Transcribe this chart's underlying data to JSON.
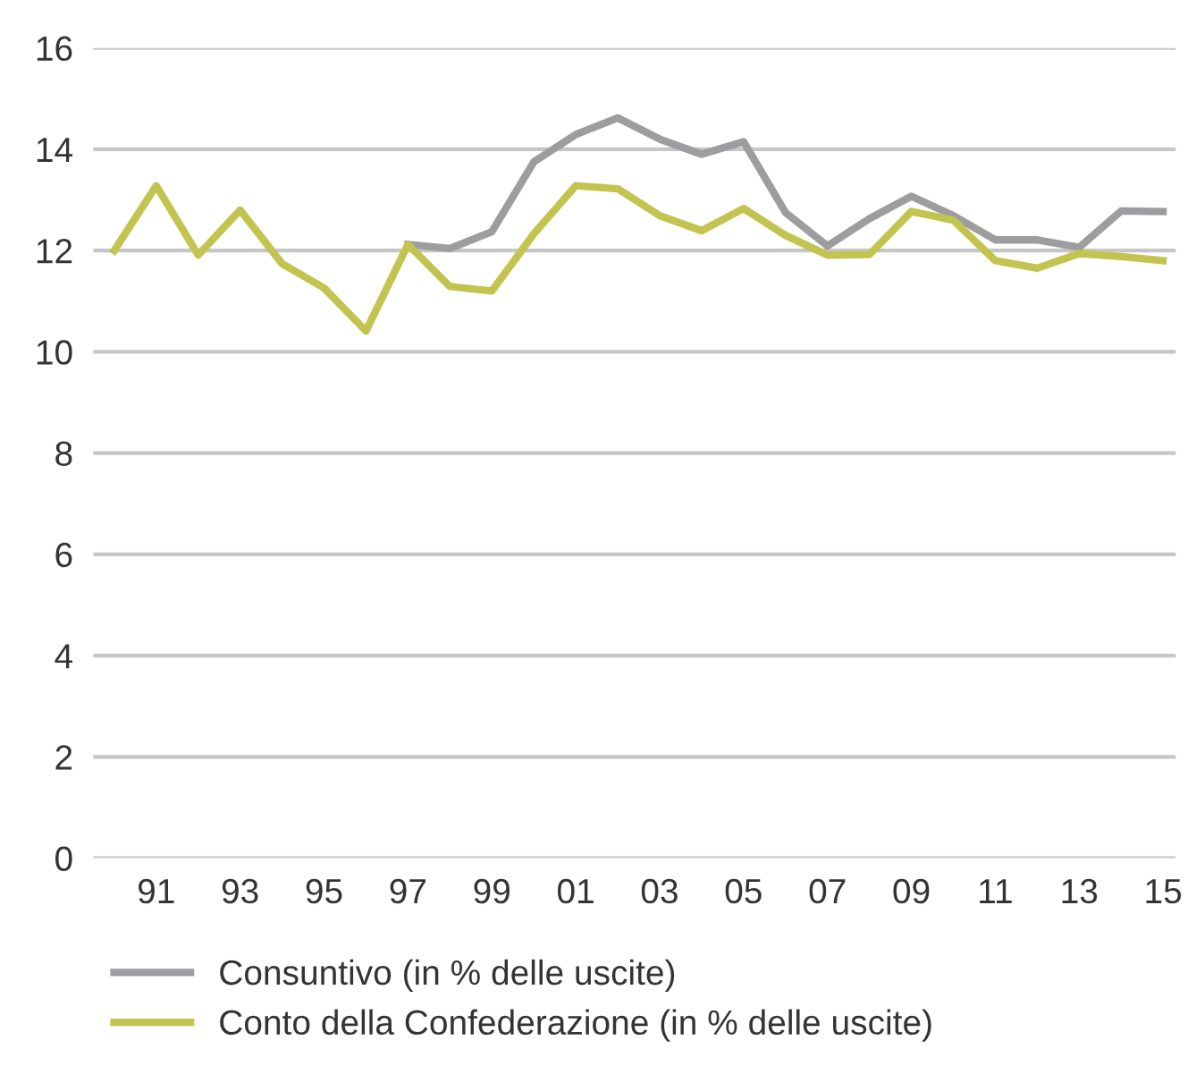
{
  "chart_data": {
    "type": "line",
    "x": [
      1990,
      1991,
      1992,
      1993,
      1994,
      1995,
      1996,
      1997,
      1998,
      1999,
      2000,
      2001,
      2002,
      2003,
      2004,
      2005,
      2006,
      2007,
      2008,
      2009,
      2010,
      2011,
      2012,
      2013,
      2014,
      2015
    ],
    "series": [
      {
        "name": "Consuntivo (in % delle uscite)",
        "color": "#9d9d9f",
        "values": [
          null,
          null,
          null,
          null,
          null,
          null,
          null,
          12.12,
          12.04,
          12.37,
          13.75,
          14.29,
          14.62,
          14.2,
          13.9,
          14.15,
          12.75,
          12.09,
          12.63,
          13.07,
          12.69,
          12.21,
          12.21,
          12.06,
          12.78,
          12.77
        ]
      },
      {
        "name": "Conto della Confederazione (in % delle uscite)",
        "color": "#c3c44f",
        "values": [
          12.0,
          13.28,
          11.91,
          12.8,
          11.74,
          11.26,
          10.41,
          12.12,
          11.29,
          11.2,
          12.33,
          13.28,
          13.22,
          12.69,
          12.39,
          12.83,
          12.3,
          11.91,
          11.92,
          12.77,
          12.6,
          11.8,
          11.65,
          11.94,
          11.88,
          11.8
        ]
      }
    ],
    "xlim": [
      1989.5,
      2015.3
    ],
    "xticks": [
      {
        "value": 1991,
        "label": "91"
      },
      {
        "value": 1993,
        "label": "93"
      },
      {
        "value": 1995,
        "label": "95"
      },
      {
        "value": 1997,
        "label": "97"
      },
      {
        "value": 1999,
        "label": "99"
      },
      {
        "value": 2001,
        "label": "01"
      },
      {
        "value": 2003,
        "label": "03"
      },
      {
        "value": 2005,
        "label": "05"
      },
      {
        "value": 2007,
        "label": "07"
      },
      {
        "value": 2009,
        "label": "09"
      },
      {
        "value": 2011,
        "label": "11"
      },
      {
        "value": 2013,
        "label": "13"
      },
      {
        "value": 2015,
        "label": "15"
      }
    ],
    "ylim": [
      0,
      16
    ],
    "yticks": [
      0,
      2,
      4,
      6,
      8,
      10,
      12,
      14,
      16
    ],
    "grid": "y",
    "legend": "bottom left",
    "line_style": "solid",
    "marker": "none"
  }
}
